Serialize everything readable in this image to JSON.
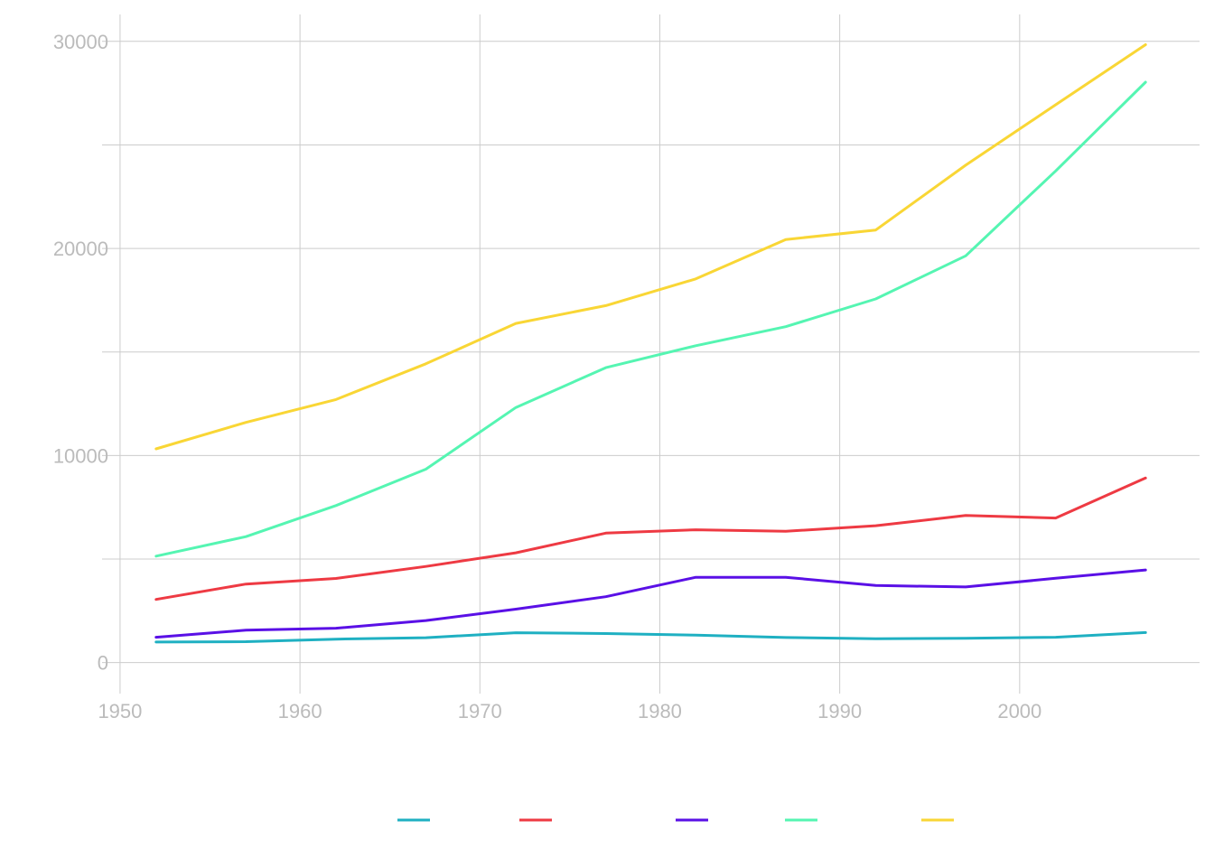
{
  "chart_data": {
    "type": "line",
    "title": "",
    "xlabel": "",
    "ylabel": "",
    "xlim": [
      1949,
      2010
    ],
    "ylim": [
      -1500,
      31300
    ],
    "x_ticks": [
      1950,
      1960,
      1970,
      1980,
      1990,
      2000
    ],
    "y_ticks": [
      0,
      10000,
      20000,
      30000
    ],
    "y_minor_ticks": [
      5000,
      15000,
      25000
    ],
    "grid": true,
    "legend_position": "bottom",
    "x": [
      1952,
      1957,
      1962,
      1967,
      1972,
      1977,
      1982,
      1987,
      1992,
      1997,
      2002,
      2007
    ],
    "series": [
      {
        "name": "",
        "color": "#1fb0c2",
        "values": [
          990,
          1010,
          1130,
          1200,
          1440,
          1400,
          1320,
          1210,
          1150,
          1170,
          1220,
          1450
        ]
      },
      {
        "name": "",
        "color": "#ee3a43",
        "values": [
          3050,
          3790,
          4060,
          4640,
          5300,
          6250,
          6410,
          6340,
          6610,
          7100,
          6980,
          8910
        ]
      },
      {
        "name": "",
        "color": "#5a10e6",
        "values": [
          1220,
          1560,
          1660,
          2030,
          2580,
          3180,
          4120,
          4120,
          3720,
          3650,
          4070,
          4470
        ]
      },
      {
        "name": "",
        "color": "#55f5b2",
        "values": [
          5140,
          6080,
          7580,
          9340,
          12320,
          14240,
          15300,
          16220,
          17560,
          19640,
          23740,
          28030
        ]
      },
      {
        "name": "",
        "color": "#f9d635",
        "values": [
          10320,
          11600,
          12700,
          14430,
          16380,
          17240,
          18530,
          20430,
          20890,
          24020,
          26940,
          29840
        ]
      }
    ]
  }
}
